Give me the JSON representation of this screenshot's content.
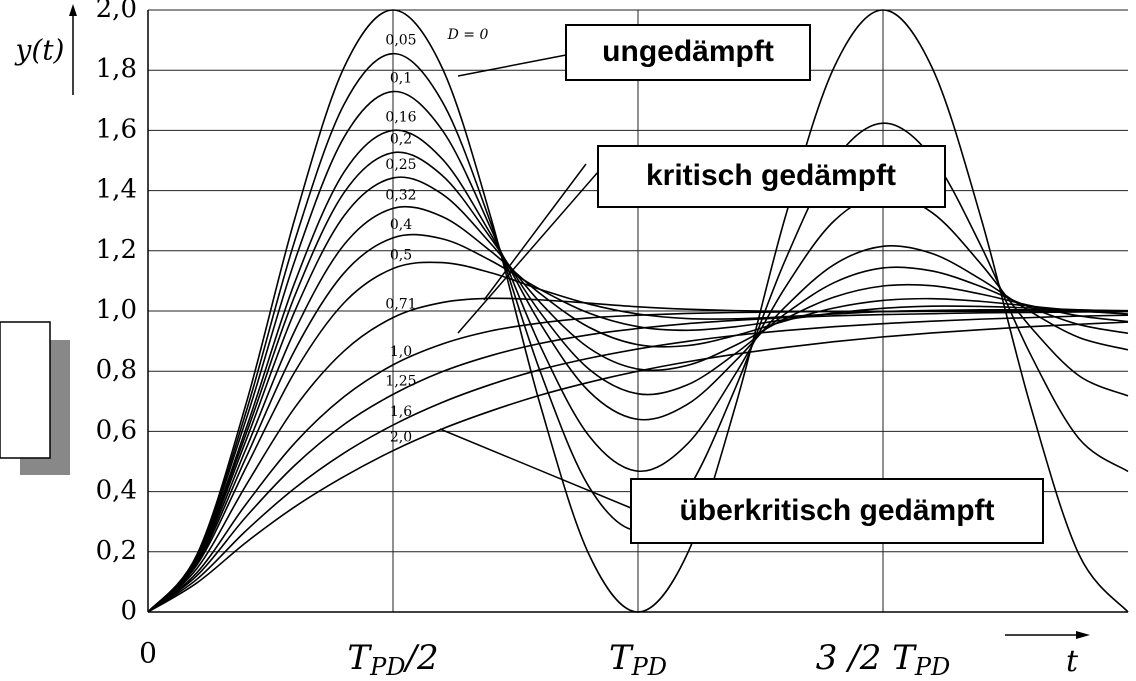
{
  "chart_data": {
    "type": "line",
    "y_label": "y(t)",
    "x_label": "t",
    "x": [
      0,
      0.1,
      0.2,
      0.3,
      0.4,
      0.5,
      0.6,
      0.7,
      0.8,
      0.9,
      1,
      1.1,
      1.2,
      1.3,
      1.4,
      1.5,
      1.6,
      1.7,
      1.8,
      1.9,
      2
    ],
    "xlim": [
      0,
      2
    ],
    "xticks": [
      0,
      {
        "value": 0.5,
        "label": "T",
        "sub": "PD",
        "suffix": "/2"
      },
      {
        "value": 1,
        "label": "T",
        "sub": "PD"
      },
      {
        "value": 1.5,
        "label": "3 /2 T",
        "sub": "PD"
      }
    ],
    "ylim": [
      0,
      2
    ],
    "yticks": [
      0,
      {
        "value": 0.2,
        "label": "0,2"
      },
      {
        "value": 0.4,
        "label": "0,4"
      },
      {
        "value": 0.6,
        "label": "0,6"
      },
      {
        "value": 0.8,
        "label": "0,8"
      },
      {
        "value": 1,
        "label": "1,0"
      },
      {
        "value": 1.2,
        "label": "1,2"
      },
      {
        "value": 1.4,
        "label": "1,4"
      },
      {
        "value": 1.6,
        "label": "1,6"
      },
      {
        "value": 1.8,
        "label": "1,8"
      },
      {
        "value": 2,
        "label": "2,0"
      }
    ],
    "grid": true,
    "color": "#000000",
    "series": [
      {
        "name": "D = 0",
        "values": [
          0,
          0.191,
          0.691,
          1.309,
          1.809,
          2,
          1.809,
          1.309,
          0.691,
          0.191,
          0,
          0.191,
          0.691,
          1.309,
          1.809,
          2,
          1.809,
          1.309,
          0.691,
          0.191,
          0
        ]
      },
      {
        "name": "0,05",
        "values": [
          0,
          0.187,
          0.664,
          1.236,
          1.686,
          1.855,
          1.697,
          1.29,
          0.801,
          0.416,
          0.27,
          0.403,
          0.749,
          1.167,
          1.498,
          1.624,
          1.511,
          1.216,
          0.859,
          0.576,
          0.467
        ]
      },
      {
        "name": "0,1",
        "values": [
          0,
          0.184,
          0.639,
          1.169,
          1.577,
          1.729,
          1.602,
          1.273,
          0.886,
          0.585,
          0.468,
          0.557,
          0.794,
          1.077,
          1.299,
          1.387,
          1.327,
          1.156,
          0.949,
          0.785,
          0.718
        ]
      },
      {
        "name": "0,16",
        "values": [
          0,
          0.179,
          0.609,
          1.097,
          1.461,
          1.6,
          1.506,
          1.254,
          0.96,
          0.733,
          0.64,
          0.689,
          0.836,
          1.013,
          1.154,
          1.215,
          1.191,
          1.105,
          0.999,
          0.912,
          0.871
        ]
      },
      {
        "name": "0,2",
        "values": [
          0,
          0.176,
          0.591,
          1.052,
          1.393,
          1.526,
          1.451,
          1.241,
          0.996,
          0.807,
          0.725,
          0.754,
          0.86,
          0.99,
          1.094,
          1.143,
          1.133,
          1.081,
          1.012,
          0.955,
          0.926
        ]
      },
      {
        "name": "0,25",
        "values": [
          0,
          0.173,
          0.57,
          1.001,
          1.316,
          1.442,
          1.389,
          1.223,
          1.029,
          0.877,
          0.807,
          0.819,
          0.887,
          0.974,
          1.046,
          1.083,
          1.084,
          1.056,
          1.018,
          0.984,
          0.965
        ]
      },
      {
        "name": "0,32",
        "values": [
          0,
          0.168,
          0.542,
          0.936,
          1.22,
          1.341,
          1.314,
          1.198,
          1.058,
          0.946,
          0.888,
          0.885,
          0.919,
          0.967,
          1.01,
          1.035,
          1.041,
          1.032,
          1.016,
          1.0,
          0.99
        ]
      },
      {
        "name": "0,4",
        "values": [
          0,
          0.163,
          0.513,
          0.871,
          1.126,
          1.243,
          1.24,
          1.167,
          1.072,
          0.993,
          0.948,
          0.936,
          0.948,
          0.971,
          0.993,
          1.009,
          1.016,
          1.015,
          1.01,
          1.004,
          0.999
        ]
      },
      {
        "name": "0,5",
        "values": [
          0,
          0.157,
          0.48,
          0.799,
          1.027,
          1.141,
          1.161,
          1.127,
          1.072,
          1.023,
          0.99,
          0.975,
          0.974,
          0.981,
          0.99,
          0.998,
          1.002,
          1.004,
          1.004,
          1.003,
          1.001
        ]
      },
      {
        "name": "0,71",
        "values": [
          0,
          0.145,
          0.421,
          0.68,
          0.867,
          0.978,
          1.028,
          1.042,
          1.037,
          1.026,
          1.014,
          1.006,
          1.001,
          0.999,
          0.998,
          0.998,
          0.999,
          0.999,
          1,
          1,
          1
        ]
      },
      {
        "name": "1,0",
        "values": [
          0,
          0.131,
          0.358,
          0.562,
          0.715,
          0.821,
          0.89,
          0.934,
          0.96,
          0.977,
          0.986,
          0.992,
          0.995,
          0.997,
          0.999,
          0.999,
          1,
          1,
          1,
          1,
          1
        ]
      },
      {
        "name": "1,25",
        "values": [
          0,
          0.121,
          0.316,
          0.488,
          0.623,
          0.723,
          0.798,
          0.852,
          0.892,
          0.921,
          0.942,
          0.958,
          0.969,
          0.978,
          0.984,
          0.988,
          0.991,
          0.994,
          0.995,
          0.997,
          0.998
        ]
      },
      {
        "name": "1,6",
        "values": [
          0,
          0.109,
          0.27,
          0.412,
          0.528,
          0.621,
          0.696,
          0.756,
          0.805,
          0.843,
          0.874,
          0.899,
          0.919,
          0.935,
          0.948,
          0.958,
          0.966,
          0.973,
          0.978,
          0.983,
          0.986
        ]
      },
      {
        "name": "2,0",
        "values": [
          0,
          0.097,
          0.231,
          0.35,
          0.45,
          0.536,
          0.608,
          0.668,
          0.72,
          0.763,
          0.8,
          0.831,
          0.857,
          0.879,
          0.898,
          0.914,
          0.927,
          0.938,
          0.948,
          0.956,
          0.963
        ]
      }
    ],
    "annotations": [
      "ungedämpft",
      "kritisch gedämpft",
      "überkritisch gedämpft"
    ]
  }
}
